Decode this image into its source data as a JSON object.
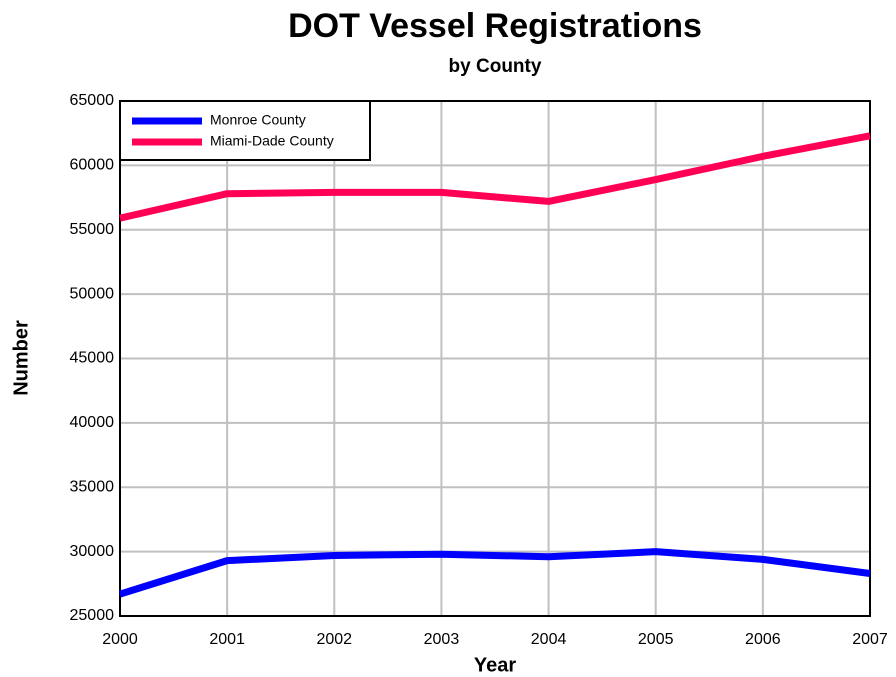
{
  "chart_data": {
    "type": "line",
    "title": "DOT Vessel Registrations",
    "subtitle": "by County",
    "xlabel": "Year",
    "ylabel": "Number",
    "x": [
      2000,
      2001,
      2002,
      2003,
      2004,
      2005,
      2006,
      2007
    ],
    "series": [
      {
        "name": "Monroe County",
        "color": "#0000ff",
        "values": [
          26700,
          29300,
          29700,
          29800,
          29600,
          30000,
          29400,
          28300
        ]
      },
      {
        "name": "Miami-Dade County",
        "color": "#ff0055",
        "values": [
          55900,
          57800,
          57900,
          57900,
          57200,
          58900,
          60700,
          62300
        ]
      }
    ],
    "xlim": [
      2000,
      2007
    ],
    "xticks": [
      2000,
      2001,
      2002,
      2003,
      2004,
      2005,
      2006,
      2007
    ],
    "ylim": [
      25000,
      65000
    ],
    "yticks": [
      25000,
      30000,
      35000,
      40000,
      45000,
      50000,
      55000,
      60000,
      65000
    ],
    "grid": true,
    "legend": "top-left"
  }
}
